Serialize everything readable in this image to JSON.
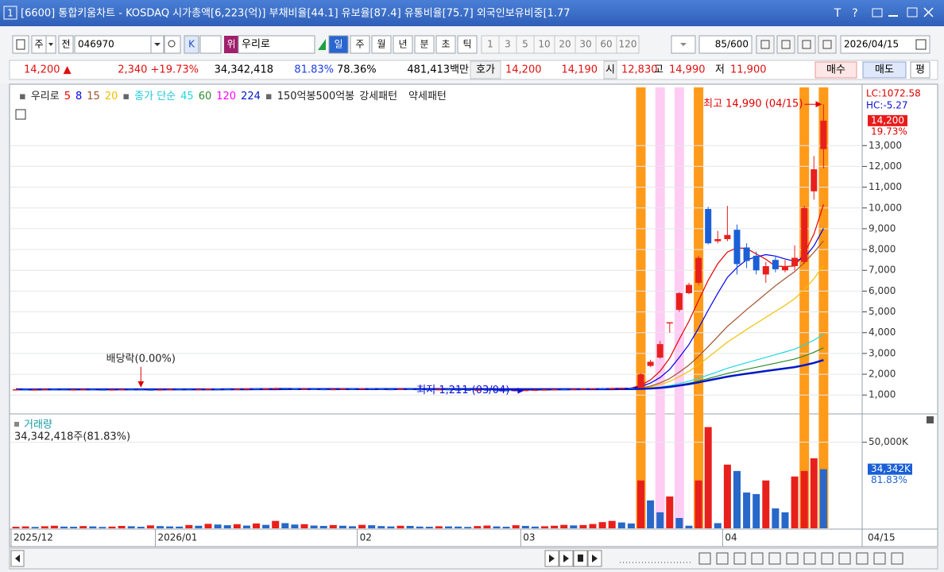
{
  "window": {
    "number": "1",
    "title": "[6600] 통합키움차트 - KOSDAQ 시가총액[6,223(억)] 부채비율[44.1] 유보율[87.4] 유통비율[75.7] 외국인보유비중[1.77",
    "tools": [
      "T",
      "?"
    ]
  },
  "toolbar": {
    "period_type": "주",
    "scope": "전",
    "code": "046970",
    "k": "K",
    "badge": "위",
    "name": "우리로",
    "periods": [
      "일",
      "주",
      "월",
      "년",
      "분",
      "초",
      "틱"
    ],
    "intervals": [
      "1",
      "3",
      "5",
      "10",
      "20",
      "30",
      "60",
      "120"
    ],
    "count": "85/600",
    "date": "2026/04/15"
  },
  "quote": {
    "price": "14,200 ▲",
    "change": "2,340 +19.73%",
    "volume": "34,342,418",
    "ratio1": "81.83%",
    "ratio2": "78.36%",
    "amount": "481,413백만",
    "ask_label": "호가",
    "ask": "14,200",
    "bid": "14,190",
    "open_label": "시",
    "open": "12,830",
    "high_label": "고",
    "high": "14,990",
    "low_label": "저",
    "low": "11,900",
    "buy": "매수",
    "sell": "매도",
    "eval": "평"
  },
  "chart_data": [
    {
      "type": "candlestick",
      "name": "우리로",
      "ma_label": "종가 단순",
      "moving_averages": [
        {
          "period": 5,
          "color": "#e60000"
        },
        {
          "period": 8,
          "color": "#0000ee"
        },
        {
          "period": 15,
          "color": "#a0522d"
        },
        {
          "period": 20,
          "color": "#f0c000"
        },
        {
          "period": 45,
          "color": "#20d8e0"
        },
        {
          "period": 60,
          "color": "#2e8b2e"
        },
        {
          "period": 120,
          "color": "#ff00ff"
        },
        {
          "period": 224,
          "color": "#0018c8"
        }
      ],
      "legend_extra": [
        "150억봉500억봉",
        "강세패턴",
        "약세패턴"
      ],
      "categories": [
        "2025/12",
        null,
        null,
        null,
        null,
        null,
        null,
        null,
        null,
        null,
        null,
        null,
        null,
        null,
        null,
        "2026/01",
        null,
        null,
        null,
        null,
        null,
        null,
        null,
        null,
        null,
        null,
        null,
        null,
        null,
        null,
        null,
        null,
        null,
        null,
        null,
        null,
        "02",
        null,
        null,
        null,
        null,
        null,
        null,
        null,
        null,
        null,
        null,
        null,
        null,
        null,
        null,
        null,
        null,
        "03",
        null,
        null,
        null,
        null,
        null,
        null,
        null,
        null,
        null,
        null,
        null,
        null,
        null,
        null,
        null,
        null,
        null,
        null,
        null,
        null,
        "04",
        null,
        null,
        null,
        null,
        null,
        null,
        null,
        null,
        null,
        null
      ],
      "current_date": "04/15",
      "ohlc": [
        [
          1260,
          1285,
          1250,
          1275
        ],
        [
          1275,
          1290,
          1260,
          1265
        ],
        [
          1265,
          1280,
          1250,
          1270
        ],
        [
          1270,
          1295,
          1262,
          1288
        ],
        [
          1288,
          1300,
          1270,
          1275
        ],
        [
          1275,
          1285,
          1255,
          1260
        ],
        [
          1260,
          1278,
          1250,
          1272
        ],
        [
          1272,
          1290,
          1265,
          1280
        ],
        [
          1280,
          1292,
          1262,
          1268
        ],
        [
          1268,
          1280,
          1255,
          1262
        ],
        [
          1262,
          1275,
          1248,
          1270
        ],
        [
          1270,
          1288,
          1260,
          1282
        ],
        [
          1282,
          1295,
          1270,
          1276
        ],
        [
          1276,
          1285,
          1258,
          1265
        ],
        [
          1265,
          1278,
          1250,
          1258
        ],
        [
          1258,
          1275,
          1248,
          1270
        ],
        [
          1270,
          1290,
          1262,
          1285
        ],
        [
          1285,
          1300,
          1272,
          1278
        ],
        [
          1278,
          1290,
          1262,
          1270
        ],
        [
          1270,
          1285,
          1258,
          1280
        ],
        [
          1280,
          1310,
          1272,
          1300
        ],
        [
          1300,
          1320,
          1285,
          1292
        ],
        [
          1292,
          1305,
          1275,
          1282
        ],
        [
          1282,
          1300,
          1270,
          1295
        ],
        [
          1295,
          1330,
          1288,
          1320
        ],
        [
          1320,
          1340,
          1300,
          1305
        ],
        [
          1305,
          1325,
          1290,
          1315
        ],
        [
          1315,
          1360,
          1305,
          1340
        ],
        [
          1340,
          1355,
          1300,
          1310
        ],
        [
          1310,
          1325,
          1285,
          1292
        ],
        [
          1292,
          1310,
          1280,
          1300
        ],
        [
          1300,
          1318,
          1285,
          1290
        ],
        [
          1290,
          1305,
          1270,
          1278
        ],
        [
          1278,
          1295,
          1265,
          1288
        ],
        [
          1288,
          1320,
          1280,
          1310
        ],
        [
          1310,
          1330,
          1290,
          1298
        ],
        [
          1298,
          1340,
          1290,
          1325
        ],
        [
          1325,
          1345,
          1300,
          1305
        ],
        [
          1305,
          1320,
          1280,
          1288
        ],
        [
          1288,
          1300,
          1270,
          1282
        ],
        [
          1282,
          1310,
          1275,
          1300
        ],
        [
          1300,
          1315,
          1280,
          1285
        ],
        [
          1285,
          1300,
          1265,
          1275
        ],
        [
          1275,
          1290,
          1260,
          1268
        ],
        [
          1268,
          1285,
          1255,
          1280
        ],
        [
          1280,
          1295,
          1260,
          1265
        ],
        [
          1265,
          1280,
          1250,
          1258
        ],
        [
          1258,
          1272,
          1240,
          1250
        ],
        [
          1250,
          1268,
          1238,
          1262
        ],
        [
          1262,
          1275,
          1240,
          1245
        ],
        [
          1245,
          1260,
          1228,
          1238
        ],
        [
          1238,
          1250,
          1225,
          1230
        ],
        [
          1230,
          1245,
          1222,
          1238
        ],
        [
          1238,
          1250,
          1211,
          1245
        ],
        [
          1245,
          1262,
          1235,
          1255
        ],
        [
          1255,
          1275,
          1242,
          1268
        ],
        [
          1268,
          1290,
          1260,
          1282
        ],
        [
          1282,
          1300,
          1270,
          1276
        ],
        [
          1276,
          1295,
          1265,
          1290
        ],
        [
          1290,
          1320,
          1285,
          1312
        ],
        [
          1312,
          1340,
          1300,
          1330
        ],
        [
          1330,
          1350,
          1310,
          1320
        ],
        [
          1320,
          1345,
          1315,
          1338
        ],
        [
          1338,
          1360,
          1325,
          1350
        ],
        [
          1350,
          1370,
          1320,
          1340
        ],
        [
          1340,
          2050,
          1320,
          2000
        ],
        [
          2400,
          2700,
          2350,
          2600
        ],
        [
          2800,
          3600,
          2750,
          3450
        ],
        [
          4500,
          4500,
          4000,
          4500
        ],
        [
          5100,
          5950,
          5000,
          5900
        ],
        [
          5900,
          6400,
          5850,
          6300
        ],
        [
          6400,
          7700,
          6300,
          7600
        ],
        [
          9950,
          10050,
          8250,
          8300
        ],
        [
          8400,
          8900,
          8300,
          8500
        ],
        [
          8500,
          10100,
          8400,
          8700
        ],
        [
          8950,
          9200,
          6800,
          7300
        ],
        [
          8100,
          8300,
          7100,
          7450
        ],
        [
          7700,
          7900,
          6800,
          7000
        ],
        [
          6800,
          7400,
          6400,
          7200
        ],
        [
          7500,
          7700,
          6900,
          7050
        ],
        [
          7000,
          7500,
          6900,
          7200
        ],
        [
          7200,
          8200,
          7000,
          7600
        ],
        [
          7400,
          10100,
          7300,
          10000
        ],
        [
          10800,
          12500,
          10400,
          11860
        ],
        [
          12830,
          14990,
          11900,
          14200
        ]
      ],
      "colors": {
        "up": "#e8201c",
        "down": "#1a5fd6"
      },
      "ylim": [
        130,
        15800
      ],
      "yticks": [
        {
          "value": 1000,
          "label": "1,000"
        },
        {
          "value": 2000,
          "label": "2,000"
        },
        {
          "value": 3000,
          "label": "3,000"
        },
        {
          "value": 4000,
          "label": "4,000"
        },
        {
          "value": 5000,
          "label": "5,000"
        },
        {
          "value": 6000,
          "label": "6,000"
        },
        {
          "value": 7000,
          "label": "7,000"
        },
        {
          "value": 8000,
          "label": "8,000"
        },
        {
          "value": 9000,
          "label": "9,000"
        },
        {
          "value": 10000,
          "label": "10,000"
        },
        {
          "value": 11000,
          "label": "11,000"
        },
        {
          "value": 12000,
          "label": "12,000"
        },
        {
          "value": 13000,
          "label": "13,000"
        }
      ],
      "grid": true,
      "patterns": {
        "strong": [
          65,
          71,
          82,
          84
        ],
        "weak": [
          67,
          69
        ],
        "strong_color": "#ff9a1a",
        "weak_color": "#ffccf4"
      },
      "dividend_marker": {
        "text": "배당락(0.00%)",
        "index": 13
      },
      "low_marker": {
        "text": "최저 1,211 (03/04)",
        "index": 53
      },
      "high_marker": {
        "text": "최고 14,990 (04/15)",
        "index": 84
      },
      "right_labels": {
        "lc": "LC:1072.58",
        "hc": "HC:-5.27",
        "last": "14,200",
        "pct": "19.73%"
      }
    },
    {
      "type": "bar",
      "title": "거래량",
      "subtitle": "34,342,418주(81.83%)",
      "values": [
        900,
        1100,
        800,
        1200,
        1500,
        1000,
        900,
        1300,
        1100,
        800,
        1000,
        1400,
        1200,
        900,
        1700,
        1300,
        1100,
        1000,
        1900,
        1500,
        2600,
        2200,
        1800,
        2400,
        1600,
        2800,
        2000,
        4300,
        3000,
        2200,
        2400,
        1600,
        1400,
        1900,
        1500,
        1200,
        2000,
        1800,
        1300,
        1100,
        1500,
        1400,
        1000,
        900,
        1200,
        1100,
        1000,
        800,
        1300,
        1600,
        1100,
        900,
        1800,
        1400,
        1000,
        1200,
        1500,
        2000,
        1700,
        1900,
        2500,
        3600,
        4300,
        3400,
        2800,
        27800,
        16200,
        9300,
        18500,
        6000,
        1500,
        27800,
        58800,
        3000,
        37000,
        33300,
        20800,
        19900,
        27800,
        11600,
        9300,
        30100,
        33300,
        40700,
        34342
      ],
      "colors": {
        "up": "#e8201c",
        "down": "#2868c8"
      },
      "ylim": [
        0,
        66000
      ],
      "yticks": [
        {
          "value": 50000,
          "label": "50,000K"
        }
      ],
      "last_label": "34,342K",
      "last_pct": "81.83%"
    }
  ]
}
